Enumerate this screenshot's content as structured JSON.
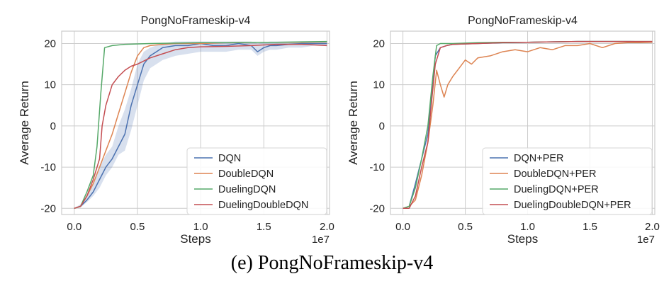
{
  "caption": "(e) PongNoFrameskip-v4",
  "chart_data": [
    {
      "type": "line",
      "title": "PongNoFrameskip-v4",
      "xlabel": "Steps",
      "ylabel": "Average Return",
      "x_offset_label": "1e7",
      "xlim": [
        -0.1,
        2.02
      ],
      "ylim": [
        -21.5,
        23
      ],
      "xticks": [
        "0.0",
        "0.5",
        "1.0",
        "1.5",
        "2.0"
      ],
      "yticks": [
        "-20",
        "-10",
        "0",
        "10",
        "20"
      ],
      "grid": true,
      "legend_position": "lower-right",
      "series": [
        {
          "name": "DQN",
          "color": "#4c72b0",
          "x": [
            0,
            0.05,
            0.1,
            0.15,
            0.2,
            0.25,
            0.3,
            0.35,
            0.4,
            0.45,
            0.5,
            0.55,
            0.6,
            0.65,
            0.7,
            0.8,
            0.9,
            1.0,
            1.1,
            1.2,
            1.3,
            1.4,
            1.45,
            1.5,
            1.55,
            1.6,
            1.7,
            1.8,
            1.9,
            2.0
          ],
          "y": [
            -20,
            -19.5,
            -18,
            -16,
            -13,
            -10,
            -8,
            -5,
            -2,
            5,
            10,
            15,
            17,
            18,
            19,
            19.5,
            19.5,
            20,
            19.5,
            19.5,
            20,
            19.5,
            18,
            19,
            19.5,
            19.5,
            19.8,
            20,
            20,
            20
          ],
          "band_low": [
            -20,
            -19.8,
            -18.5,
            -17,
            -15,
            -12,
            -10,
            -7,
            -6,
            -1,
            5,
            11,
            14,
            15,
            16,
            17,
            17.5,
            18,
            18,
            18,
            18.5,
            18.5,
            17,
            18,
            18.5,
            18.5,
            19,
            19,
            19.5,
            19.5
          ],
          "band_high": [
            -20,
            -19,
            -17,
            -14,
            -10,
            -7,
            -5,
            0,
            4,
            9,
            15,
            18,
            19,
            19.5,
            20,
            20.5,
            20.5,
            20.5,
            20.5,
            20.5,
            20.5,
            20.5,
            20,
            20.3,
            20.5,
            20.5,
            20.5,
            20.5,
            20.5,
            20.5
          ]
        },
        {
          "name": "DoubleDQN",
          "color": "#dd8452",
          "x": [
            0,
            0.05,
            0.1,
            0.15,
            0.2,
            0.25,
            0.3,
            0.35,
            0.4,
            0.45,
            0.5,
            0.55,
            0.6,
            0.7,
            0.8,
            1.0,
            1.2,
            1.4,
            1.6,
            1.8,
            2.0
          ],
          "y": [
            -20,
            -19.5,
            -17,
            -14,
            -10,
            -6,
            -2,
            3,
            8,
            13,
            17,
            19,
            19.5,
            19.8,
            20,
            20,
            20.2,
            20.3,
            20.3,
            20.3,
            20.4
          ]
        },
        {
          "name": "DuelingDQN",
          "color": "#55a868",
          "x": [
            0,
            0.05,
            0.1,
            0.15,
            0.18,
            0.21,
            0.24,
            0.3,
            0.4,
            0.6,
            0.8,
            1.0,
            1.2,
            1.4,
            1.6,
            1.8,
            2.0
          ],
          "y": [
            -20,
            -19.5,
            -16,
            -12,
            -5,
            8,
            19,
            19.5,
            19.8,
            20,
            20.1,
            20.2,
            20.2,
            20.3,
            20.3,
            20.4,
            20.5
          ]
        },
        {
          "name": "DuelingDoubleDQN",
          "color": "#c44e52",
          "x": [
            0,
            0.05,
            0.1,
            0.15,
            0.2,
            0.22,
            0.25,
            0.3,
            0.35,
            0.4,
            0.45,
            0.5,
            0.6,
            0.7,
            0.8,
            0.9,
            1.0,
            1.2,
            1.4,
            1.6,
            1.8,
            2.0
          ],
          "y": [
            -20,
            -19.5,
            -17,
            -13,
            -8,
            0,
            5,
            10,
            12,
            13.5,
            14.5,
            15,
            16.5,
            17.5,
            18.5,
            19,
            19.2,
            19.3,
            19.5,
            19.8,
            19.8,
            19.5
          ]
        }
      ]
    },
    {
      "type": "line",
      "title": "PongNoFrameskip-v4",
      "xlabel": "Steps",
      "ylabel": "Average Return",
      "x_offset_label": "1e7",
      "xlim": [
        -0.1,
        2.02
      ],
      "ylim": [
        -21.5,
        23
      ],
      "xticks": [
        "0.0",
        "0.5",
        "1.0",
        "1.5",
        "2.0"
      ],
      "yticks": [
        "-20",
        "-10",
        "0",
        "10",
        "20"
      ],
      "grid": true,
      "legend_position": "lower-right",
      "series": [
        {
          "name": "DQN+PER",
          "color": "#4c72b0",
          "x": [
            0,
            0.05,
            0.1,
            0.15,
            0.2,
            0.23,
            0.26,
            0.3,
            0.35,
            0.4,
            0.6,
            0.8,
            1.0,
            1.2,
            1.4,
            1.6,
            1.8,
            2.0
          ],
          "y": [
            -20,
            -19.5,
            -14,
            -8,
            -2,
            8,
            17,
            19,
            19.5,
            19.8,
            20,
            20.2,
            20.3,
            20.4,
            20.5,
            20.5,
            20.5,
            20.4
          ]
        },
        {
          "name": "DoubleDQN+PER",
          "color": "#dd8452",
          "x": [
            0,
            0.05,
            0.1,
            0.15,
            0.2,
            0.24,
            0.27,
            0.3,
            0.33,
            0.36,
            0.4,
            0.45,
            0.5,
            0.55,
            0.6,
            0.7,
            0.8,
            0.9,
            1.0,
            1.1,
            1.2,
            1.3,
            1.4,
            1.5,
            1.6,
            1.7,
            1.8,
            1.9,
            2.0
          ],
          "y": [
            -20,
            -19.5,
            -18,
            -12,
            -4,
            5,
            13.5,
            10,
            7,
            10,
            12,
            14,
            16,
            15,
            16.5,
            17,
            18,
            18.5,
            18,
            19,
            18.5,
            19.5,
            19.5,
            20,
            19,
            20,
            20.2,
            20.2,
            20.3
          ]
        },
        {
          "name": "DuelingDQN+PER",
          "color": "#55a868",
          "x": [
            0,
            0.05,
            0.1,
            0.15,
            0.2,
            0.24,
            0.27,
            0.3,
            0.4,
            0.6,
            0.8,
            1.0,
            1.2,
            1.4,
            1.6,
            1.8,
            2.0
          ],
          "y": [
            -20,
            -19.5,
            -15,
            -8,
            0,
            12,
            19.5,
            20,
            20,
            20.2,
            20.3,
            20.3,
            20.4,
            20.5,
            20.5,
            20.5,
            20.5
          ]
        },
        {
          "name": "DuelingDoubleDQN+PER",
          "color": "#c44e52",
          "x": [
            0,
            0.05,
            0.1,
            0.15,
            0.2,
            0.23,
            0.26,
            0.3,
            0.35,
            0.4,
            0.6,
            0.8,
            1.0,
            1.2,
            1.4,
            1.6,
            1.8,
            2.0
          ],
          "y": [
            -20,
            -20,
            -17,
            -10,
            -4,
            6,
            15,
            19,
            19.5,
            19.8,
            20,
            20.2,
            20.3,
            20.4,
            20.5,
            20.5,
            20.5,
            20.5
          ]
        }
      ]
    }
  ]
}
